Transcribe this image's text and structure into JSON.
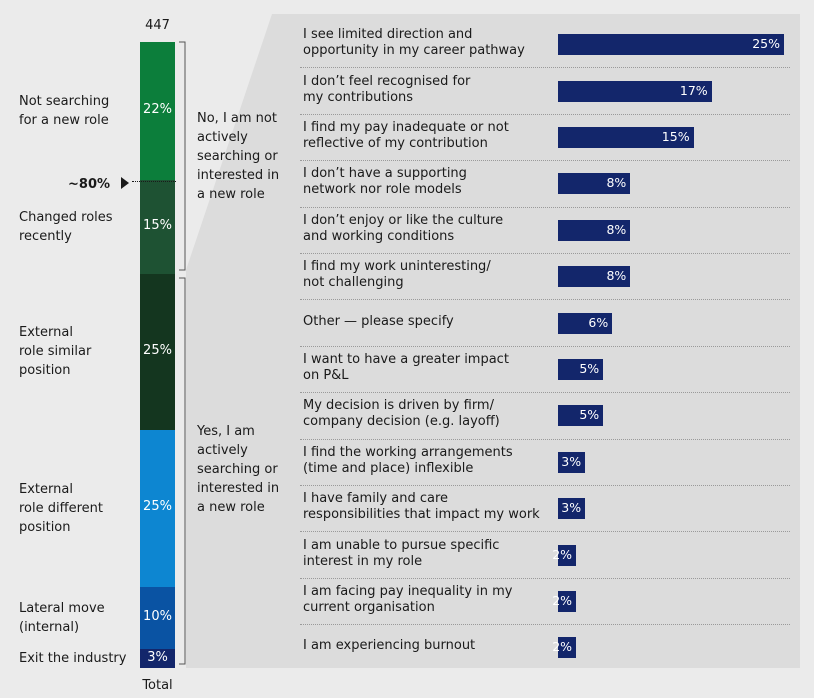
{
  "stack": {
    "total_n": "447",
    "x_label": "Total",
    "marker_label": "~80%",
    "segments": [
      {
        "label": "Not searching\nfor a new role",
        "value": 22,
        "pct": "22%",
        "color": "#0c7e3b"
      },
      {
        "label": "Changed roles\nrecently",
        "value": 15,
        "pct": "15%",
        "color": "#1e5233"
      },
      {
        "label": "External\nrole similar\nposition",
        "value": 25,
        "pct": "25%",
        "color": "#14361f"
      },
      {
        "label": "External\nrole different\nposition",
        "value": 25,
        "pct": "25%",
        "color": "#0d86d1"
      },
      {
        "label": "Lateral move\n(internal)",
        "value": 10,
        "pct": "10%",
        "color": "#0a53a3"
      },
      {
        "label": "Exit the industry",
        "value": 3,
        "pct": "3%",
        "color": "#13266b"
      }
    ],
    "brackets": {
      "no": "No, I am not\nactively\nsearching or\ninterested in\na new role",
      "yes": "Yes, I am\nactively\nsearching or\ninterested in\na new role"
    }
  },
  "chart_data": [
    {
      "type": "bar",
      "orientation": "stacked-vertical",
      "categories": [
        "Not searching for a new role",
        "Changed roles recently",
        "External role similar position",
        "External role different position",
        "Lateral move (internal)",
        "Exit the industry"
      ],
      "values": [
        22,
        15,
        25,
        25,
        10,
        3
      ],
      "title": "",
      "xlabel": "Total",
      "ylabel": "",
      "annotations": [
        "447",
        "~80%"
      ]
    },
    {
      "type": "bar",
      "orientation": "horizontal",
      "categories": [
        "I see limited direction and\nopportunity in my career pathway",
        "I don’t feel recognised for\nmy contributions",
        "I find my pay inadequate or not\nreflective of my contribution",
        "I don’t have a supporting\nnetwork nor role models",
        "I don’t enjoy or like the culture\nand working conditions",
        "I find my work uninteresting/\nnot challenging",
        "Other — please specify",
        "I want to have a greater impact\non P&L",
        "My decision is driven by firm/\ncompany decision (e.g. layoff)",
        "I find the working arrangements\n(time and place) inflexible",
        "I have family and care\nresponsibilities that impact my work",
        "I am unable to pursue specific\ninterest in my role",
        "I am facing pay inequality in my\ncurrent organisation",
        "I am experiencing burnout"
      ],
      "values": [
        25,
        17,
        15,
        8,
        8,
        8,
        6,
        5,
        5,
        3,
        3,
        2,
        2,
        2
      ],
      "value_labels": [
        "25%",
        "17%",
        "15%",
        "8%",
        "8%",
        "8%",
        "6%",
        "5%",
        "5%",
        "3%",
        "3%",
        "2%",
        "2%",
        "2%"
      ],
      "xlim": [
        0,
        25
      ],
      "title": "",
      "xlabel": "",
      "ylabel": "",
      "bar_color": "#13266b",
      "panel_color": "#dcdcdc"
    }
  ]
}
